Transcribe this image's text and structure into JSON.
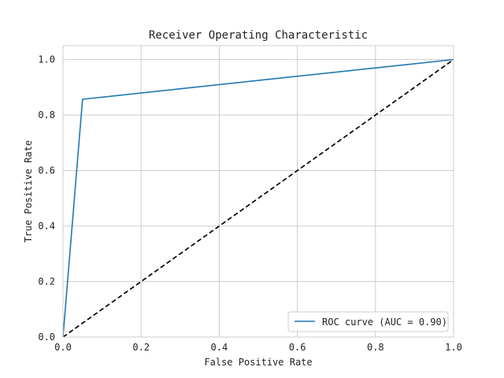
{
  "chart_data": {
    "type": "line",
    "title": "Receiver Operating Characteristic",
    "xlabel": "False Positive Rate",
    "ylabel": "True Positive Rate",
    "xlim": [
      0.0,
      1.0
    ],
    "ylim": [
      0.0,
      1.05
    ],
    "xticks": [
      0.0,
      0.2,
      0.4,
      0.6,
      0.8,
      1.0
    ],
    "yticks": [
      0.0,
      0.2,
      0.4,
      0.6,
      0.8,
      1.0
    ],
    "xtick_labels": [
      "0.0",
      "0.2",
      "0.4",
      "0.6",
      "0.8",
      "1.0"
    ],
    "ytick_labels": [
      "0.0",
      "0.2",
      "0.4",
      "0.6",
      "0.8",
      "1.0"
    ],
    "grid": true,
    "legend_position": "lower-right",
    "series": [
      {
        "name": "ROC curve (AUC = 0.90)",
        "color": "#1f77b4",
        "style": "solid",
        "x": [
          0.0,
          0.05,
          1.0
        ],
        "y": [
          0.0,
          0.857,
          1.0
        ]
      },
      {
        "color": "#000000",
        "style": "dashed",
        "x": [
          0.0,
          1.0
        ],
        "y": [
          0.0,
          1.0
        ]
      }
    ]
  }
}
